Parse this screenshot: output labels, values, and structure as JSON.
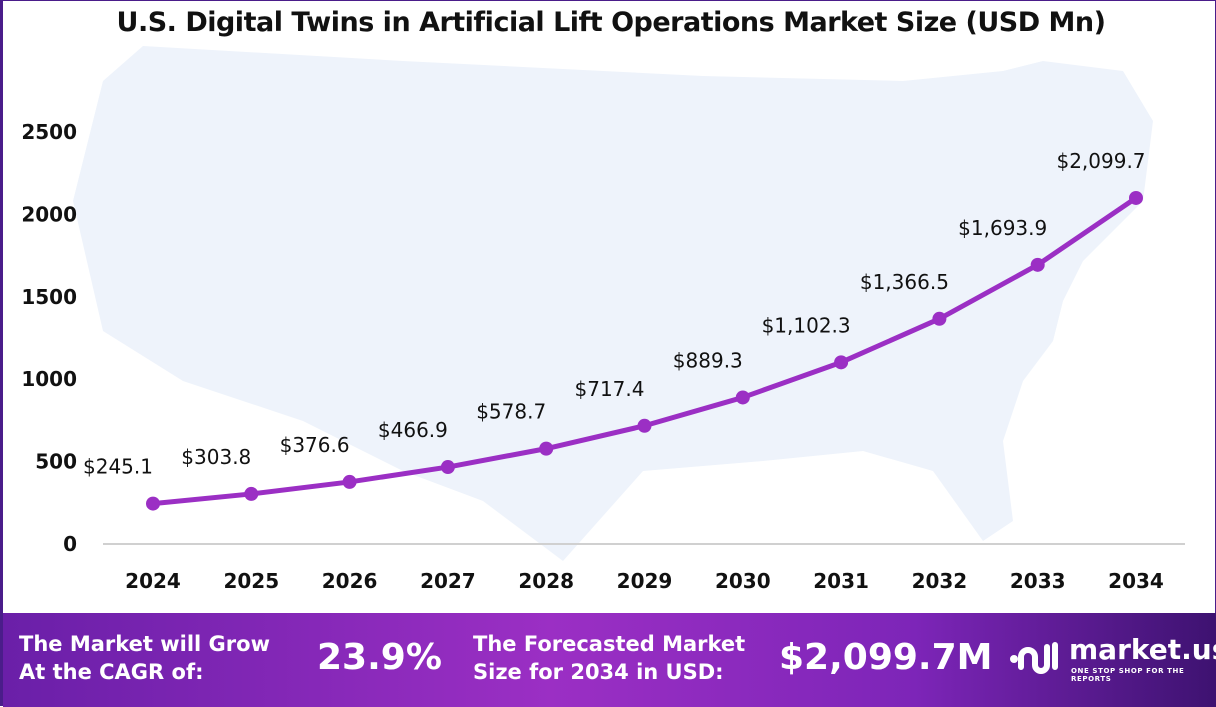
{
  "title": "U.S. Digital Twins in Artificial Lift Operations Market Size (USD Mn)",
  "chart_data": {
    "type": "line",
    "title": "U.S. Digital Twins in Artificial Lift Operations Market Size (USD Mn)",
    "categories": [
      "2024",
      "2025",
      "2026",
      "2027",
      "2028",
      "2029",
      "2030",
      "2031",
      "2032",
      "2033",
      "2034"
    ],
    "values": [
      245.1,
      303.8,
      376.6,
      466.9,
      578.7,
      717.4,
      889.3,
      1102.3,
      1366.5,
      1693.9,
      2099.7
    ],
    "data_labels": [
      "$245.1",
      "$303.8",
      "$376.6",
      "$466.9",
      "$578.7",
      "$717.4",
      "$889.3",
      "$1,102.3",
      "$1,366.5",
      "$1,693.9",
      "$2,099.7"
    ],
    "yticks": [
      "0",
      "500",
      "1000",
      "1500",
      "2000",
      "2500"
    ],
    "ylim": [
      0,
      2500
    ],
    "grid": false,
    "line_color": "#9b2fc4"
  },
  "footer": {
    "cagr_label": "The Market will Grow At the CAGR of:",
    "cagr_value": "23.9%",
    "forecast_label": "The Forecasted Market Size for 2034 in USD:",
    "forecast_value": "$2,099.7M",
    "brand": "market.us",
    "tagline": "ONE STOP SHOP FOR THE REPORTS"
  }
}
